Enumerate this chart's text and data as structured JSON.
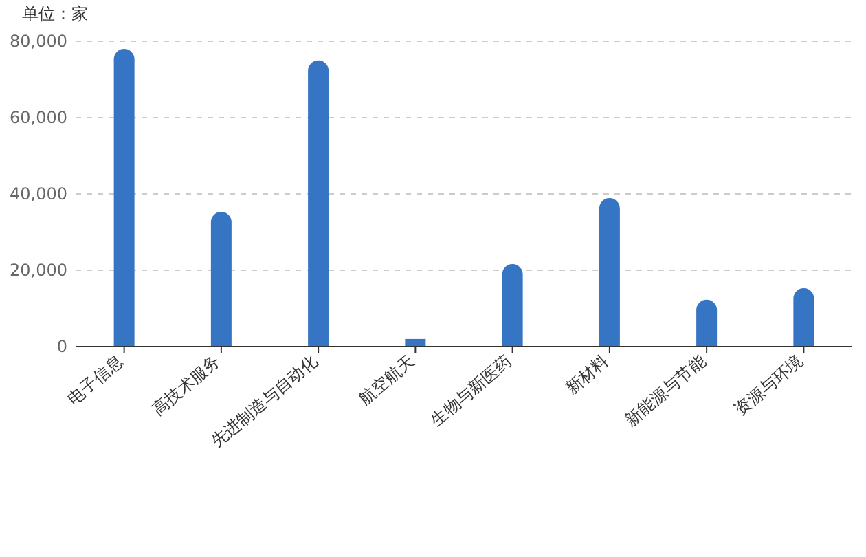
{
  "chart_data": {
    "type": "bar",
    "ylabel": "单位：家",
    "categories": [
      "电子信息",
      "高技术服务",
      "先进制造与自动化",
      "航空航天",
      "生物与新医药",
      "新材料",
      "新能源与节能",
      "资源与环境"
    ],
    "values": [
      78000,
      35300,
      75000,
      2000,
      21600,
      38900,
      12300,
      15300
    ],
    "color": "#3674c4",
    "ylim": [
      0,
      80000
    ],
    "yticks": [
      {
        "value": 0,
        "label": "0"
      },
      {
        "value": 20000,
        "label": "20,000"
      },
      {
        "value": 40000,
        "label": "40,000"
      },
      {
        "value": 60000,
        "label": "60,000"
      },
      {
        "value": 80000,
        "label": "80,000"
      }
    ],
    "grid": "y"
  }
}
